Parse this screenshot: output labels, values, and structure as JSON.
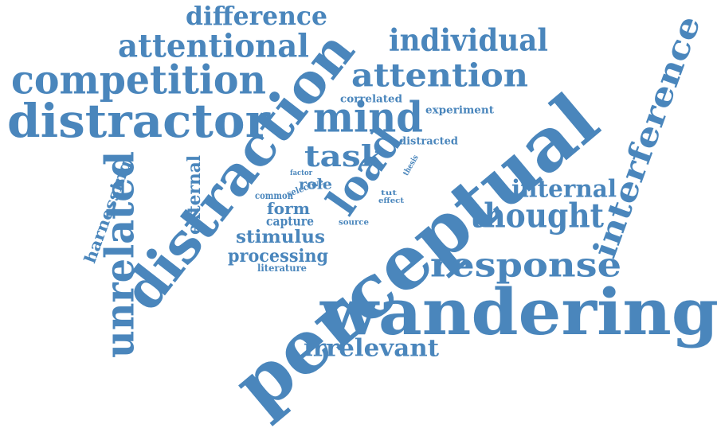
{
  "word_cloud": {
    "color": "#4a86bc",
    "words": [
      {
        "id": "perceptual",
        "text": "perceptual"
      },
      {
        "id": "wandering",
        "text": "wandering"
      },
      {
        "id": "distraction",
        "text": "distraction"
      },
      {
        "id": "distractor",
        "text": "distractor"
      },
      {
        "id": "competition",
        "text": "competition"
      },
      {
        "id": "attentional",
        "text": "attentional"
      },
      {
        "id": "difference",
        "text": "difference"
      },
      {
        "id": "individual",
        "text": "individual"
      },
      {
        "id": "attention",
        "text": "attention"
      },
      {
        "id": "mind",
        "text": "mind"
      },
      {
        "id": "load",
        "text": "load"
      },
      {
        "id": "task",
        "text": "task"
      },
      {
        "id": "interference",
        "text": "interference"
      },
      {
        "id": "thought",
        "text": "thought"
      },
      {
        "id": "internal",
        "text": "internal"
      },
      {
        "id": "response",
        "text": "response"
      },
      {
        "id": "unrelated",
        "text": "unrelated"
      },
      {
        "id": "harnessing",
        "text": "harnessing"
      },
      {
        "id": "external",
        "text": "external"
      },
      {
        "id": "irrelevant",
        "text": "irrelevant"
      },
      {
        "id": "stimulus",
        "text": "stimulus"
      },
      {
        "id": "processing",
        "text": "processing"
      },
      {
        "id": "capture",
        "text": "capture"
      },
      {
        "id": "form",
        "text": "form"
      },
      {
        "id": "common",
        "text": "common"
      },
      {
        "id": "role",
        "text": "role"
      },
      {
        "id": "selective",
        "text": "selective"
      },
      {
        "id": "factor",
        "text": "factor"
      },
      {
        "id": "literature",
        "text": "literature"
      },
      {
        "id": "source",
        "text": "source"
      },
      {
        "id": "distracted",
        "text": "distracted"
      },
      {
        "id": "correlated",
        "text": "correlated"
      },
      {
        "id": "experiment",
        "text": "experiment"
      },
      {
        "id": "thesis",
        "text": "thesis"
      },
      {
        "id": "tut",
        "text": "tut"
      },
      {
        "id": "effect",
        "text": "effect"
      }
    ]
  }
}
